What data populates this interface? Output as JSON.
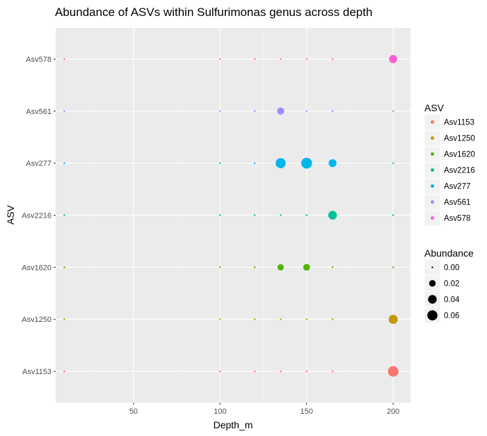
{
  "chart_data": {
    "type": "scatter",
    "title": "Abundance of ASVs within Sulfurimonas genus across depth",
    "xlabel": "Depth_m",
    "ylabel": "ASV",
    "xlim": [
      5,
      210
    ],
    "x_ticks": [
      50,
      100,
      150,
      200
    ],
    "categories": [
      "Asv1153",
      "Asv1250",
      "Asv1620",
      "Asv2216",
      "Asv277",
      "Asv561",
      "Asv578"
    ],
    "depths": [
      10,
      100,
      120,
      135,
      150,
      165,
      200
    ],
    "grid": true,
    "legend_placement": "right",
    "color_legend": {
      "title": "ASV",
      "entries": [
        "Asv1153",
        "Asv1250",
        "Asv1620",
        "Asv2216",
        "Asv277",
        "Asv561",
        "Asv578"
      ]
    },
    "size_legend": {
      "title": "Abundance",
      "values": [
        0.0,
        0.02,
        0.04,
        0.06
      ],
      "labels": [
        "0.00",
        "0.02",
        "0.04",
        "0.06"
      ]
    },
    "series": [
      {
        "name": "Asv1153",
        "color": "#F8766D",
        "x": [
          10,
          100,
          120,
          135,
          150,
          165,
          200
        ],
        "abundance": [
          0,
          0,
          0,
          0,
          0,
          0,
          0.065
        ]
      },
      {
        "name": "Asv1250",
        "color": "#C49A00",
        "x": [
          10,
          100,
          120,
          135,
          150,
          165,
          200
        ],
        "abundance": [
          0,
          0,
          0,
          0,
          0,
          0,
          0.045
        ]
      },
      {
        "name": "Asv1620",
        "color": "#53B400",
        "x": [
          10,
          100,
          120,
          135,
          150,
          165,
          200
        ],
        "abundance": [
          0,
          0,
          0,
          0.018,
          0.022,
          0,
          0
        ]
      },
      {
        "name": "Asv2216",
        "color": "#00C094",
        "x": [
          10,
          100,
          120,
          135,
          150,
          165,
          200
        ],
        "abundance": [
          0,
          0,
          0,
          0,
          0,
          0.04,
          0
        ]
      },
      {
        "name": "Asv277",
        "color": "#00B6EB",
        "x": [
          10,
          100,
          120,
          135,
          150,
          165,
          200
        ],
        "abundance": [
          0,
          0,
          0,
          0.058,
          0.07,
          0.032,
          0
        ]
      },
      {
        "name": "Asv561",
        "color": "#A58AFF",
        "x": [
          10,
          100,
          120,
          135,
          150,
          165,
          200
        ],
        "abundance": [
          0,
          0,
          0,
          0.025,
          0,
          0,
          0
        ]
      },
      {
        "name": "Asv578",
        "color": "#FB61D7",
        "x": [
          10,
          100,
          120,
          135,
          150,
          165,
          200
        ],
        "abundance": [
          0,
          0,
          0,
          0,
          0,
          0,
          0.035
        ]
      }
    ]
  }
}
